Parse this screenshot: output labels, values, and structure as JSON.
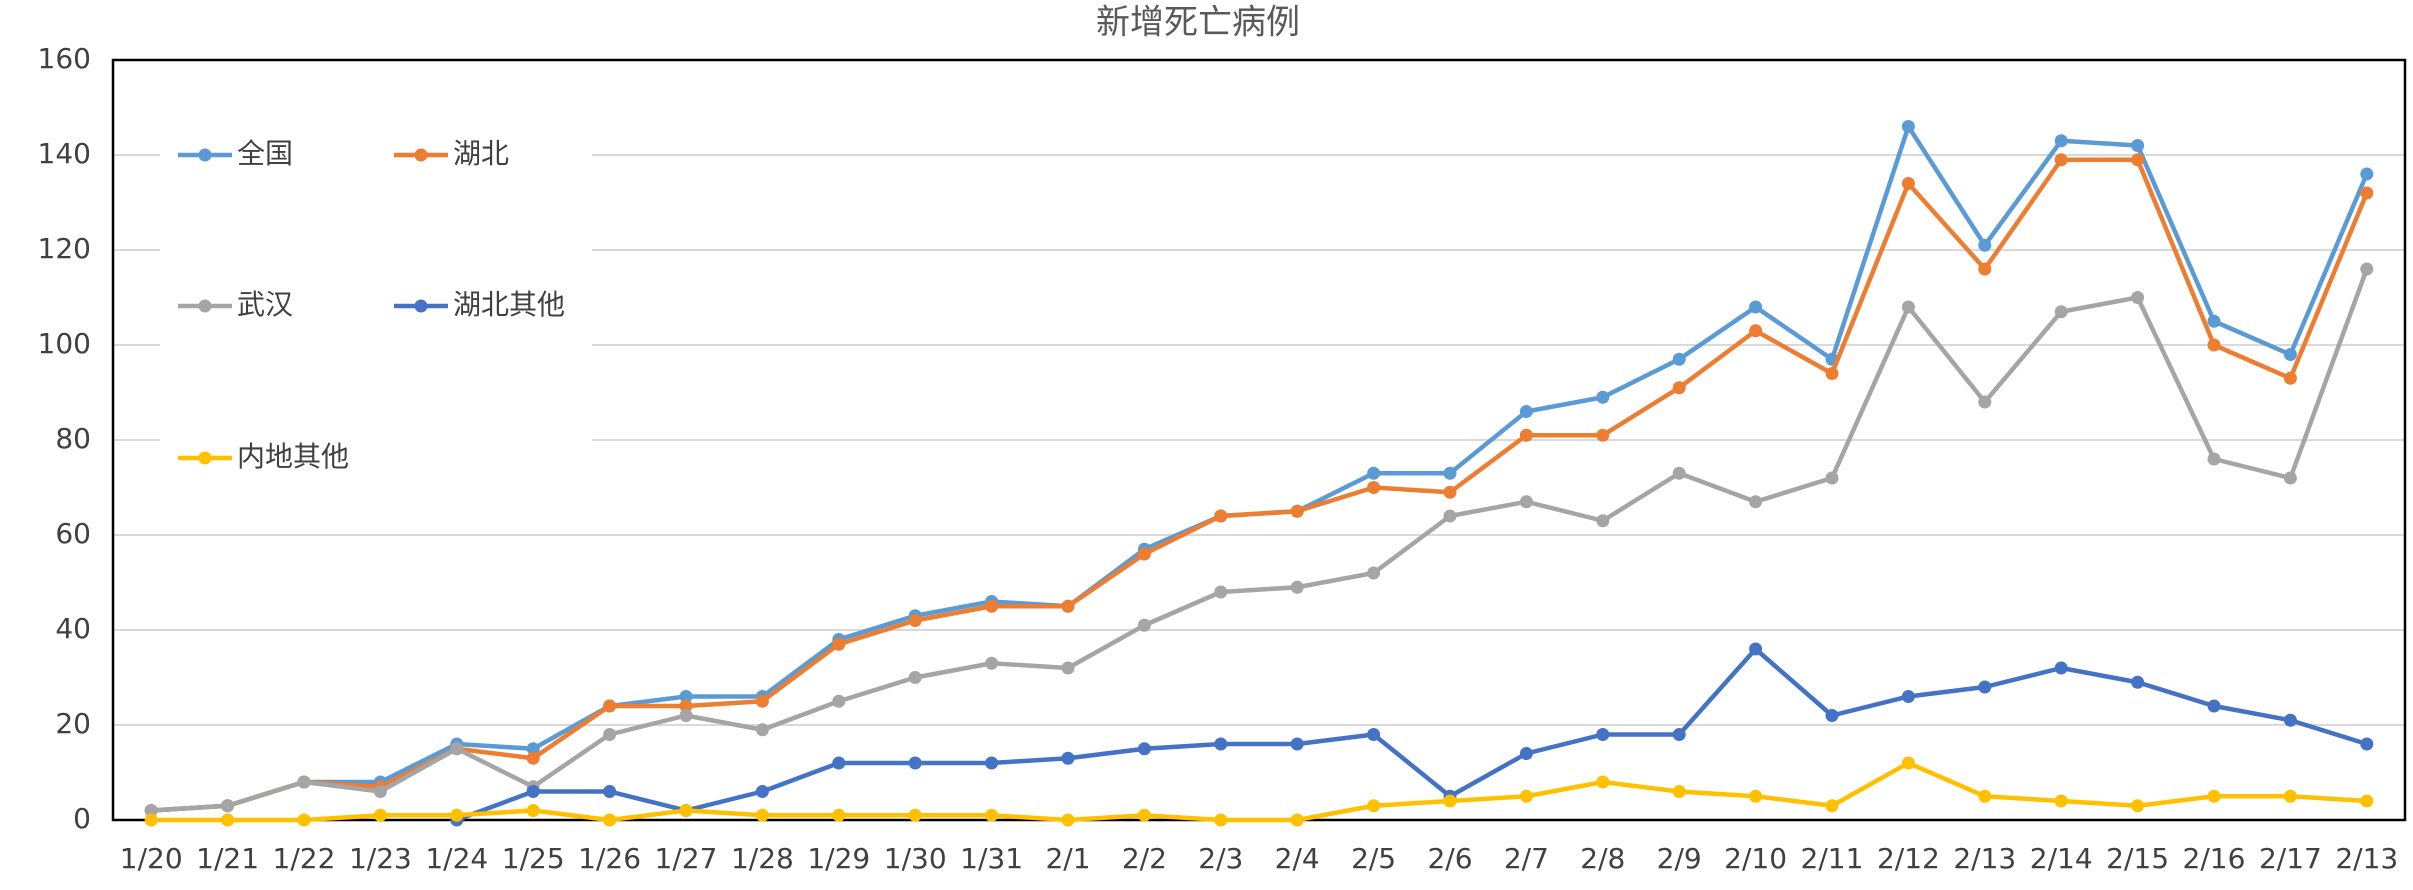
{
  "chart_data": {
    "type": "line",
    "title": "新增死亡病例",
    "categories": [
      "1/20",
      "1/21",
      "1/22",
      "1/23",
      "1/24",
      "1/25",
      "1/26",
      "1/27",
      "1/28",
      "1/29",
      "1/30",
      "1/31",
      "2/1",
      "2/2",
      "2/3",
      "2/4",
      "2/5",
      "2/6",
      "2/7",
      "2/8",
      "2/9",
      "2/10",
      "2/11",
      "2/12",
      "2/13",
      "2/14",
      "2/15",
      "2/16",
      "2/17",
      "2/13"
    ],
    "series": [
      {
        "name": "全国",
        "color": "#5b9bd5",
        "values": [
          2,
          3,
          8,
          8,
          16,
          15,
          24,
          26,
          26,
          38,
          43,
          46,
          45,
          57,
          64,
          65,
          73,
          73,
          86,
          89,
          97,
          108,
          97,
          146,
          121,
          143,
          142,
          105,
          98,
          136
        ]
      },
      {
        "name": "湖北",
        "color": "#ed7d31",
        "values": [
          2,
          3,
          8,
          7,
          15,
          13,
          24,
          24,
          25,
          37,
          42,
          45,
          45,
          56,
          64,
          65,
          70,
          69,
          81,
          81,
          91,
          103,
          94,
          134,
          116,
          139,
          139,
          100,
          93,
          132
        ]
      },
      {
        "name": "武汉",
        "color": "#a5a5a5",
        "values": [
          2,
          3,
          8,
          6,
          15,
          7,
          18,
          22,
          19,
          25,
          30,
          33,
          32,
          41,
          48,
          49,
          52,
          64,
          67,
          63,
          73,
          67,
          72,
          108,
          88,
          107,
          110,
          76,
          72,
          116
        ]
      },
      {
        "name": "湖北其他",
        "color": "#4472c4",
        "values": [
          null,
          null,
          null,
          null,
          0,
          6,
          6,
          2,
          6,
          12,
          12,
          12,
          13,
          15,
          16,
          16,
          18,
          5,
          14,
          18,
          18,
          36,
          22,
          26,
          28,
          32,
          29,
          24,
          21,
          16
        ]
      },
      {
        "name": "内地其他",
        "color": "#ffc000",
        "values": [
          0,
          0,
          0,
          1,
          1,
          2,
          0,
          2,
          1,
          1,
          1,
          1,
          0,
          1,
          0,
          0,
          3,
          4,
          5,
          8,
          6,
          5,
          3,
          12,
          5,
          4,
          3,
          5,
          5,
          4
        ]
      }
    ],
    "ylim": [
      0,
      160
    ],
    "yticks": [
      0,
      20,
      40,
      60,
      80,
      100,
      120,
      140,
      160
    ],
    "grid": true,
    "legend": "upper left"
  }
}
